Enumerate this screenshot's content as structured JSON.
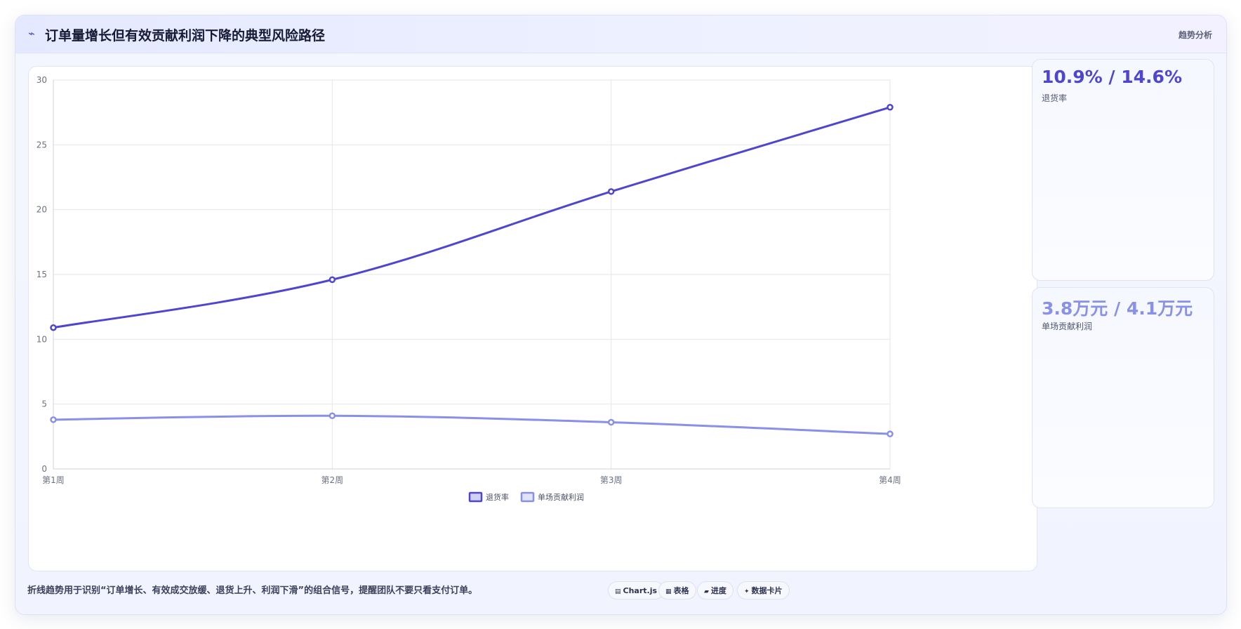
{
  "header": {
    "title_icon": "lightning-icon",
    "title": "订单量增长但有效贡献利润下降的典型风险路径",
    "tag": "趋势分析"
  },
  "chart_data": {
    "type": "line",
    "categories": [
      "第1周",
      "第2周",
      "第3周",
      "第4周"
    ],
    "series": [
      {
        "name": "退货率",
        "values": [
          10.9,
          14.6,
          21.4,
          27.9
        ],
        "color": "#4f46cf"
      },
      {
        "name": "单场贡献利润",
        "values": [
          3.8,
          4.1,
          3.6,
          2.7
        ],
        "color": "#8990e8"
      }
    ],
    "ylim": [
      0,
      30
    ],
    "yticks": [
      0,
      5,
      10,
      15,
      20,
      25,
      30
    ],
    "grid": true,
    "legend": "bottom",
    "xlabel": "",
    "ylabel": ""
  },
  "kpis": [
    {
      "value": "10.9% / 14.6%",
      "label": "退货率",
      "color": "#4f46cf"
    },
    {
      "value": "3.8万元 / 4.1万元",
      "label": "单场贡献利润",
      "color": "#8990e8"
    }
  ],
  "footer": {
    "note": "折线趋势用于识别“订单增长、有效成交放缓、退货上升、利润下滑”的组合信号，提醒团队不要只看支付订单。",
    "pills": [
      {
        "icon": "chart-icon",
        "glyph": "▤",
        "label": "Chart.js"
      },
      {
        "icon": "table-icon",
        "glyph": "▦",
        "label": "表格"
      },
      {
        "icon": "progress-icon",
        "glyph": "▰",
        "label": "进度"
      },
      {
        "icon": "sparkle-icon",
        "glyph": "✦",
        "label": "数据卡片"
      }
    ]
  }
}
